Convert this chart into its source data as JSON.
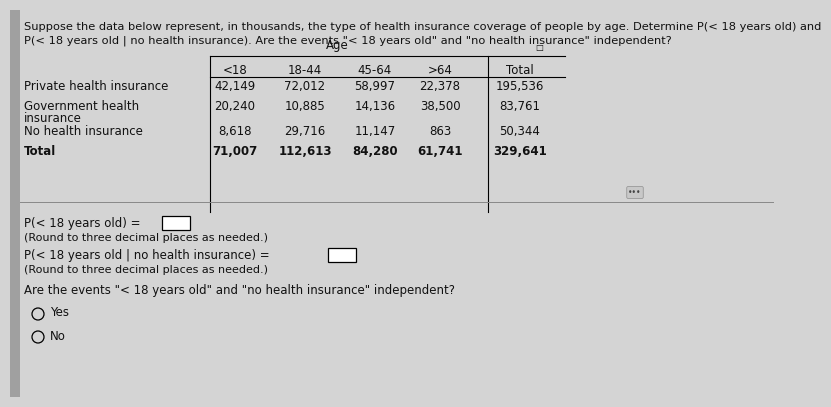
{
  "title_line1": "Suppose the data below represent, in thousands, the type of health insurance coverage of people by age. Determine P(< 18 years old) and",
  "title_line2": "P(< 18 years old | no health insurance). Are the events \"< 18 years old\" and \"no health insurance\" independent?",
  "age_header": "Age",
  "col_headers": [
    "<18",
    "18-44",
    "45-64",
    ">64",
    "Total"
  ],
  "row_labels_line1": [
    "Private health insurance",
    "Government health",
    "No health insurance",
    "Total"
  ],
  "row_labels_line2": [
    "",
    "insurance",
    "",
    ""
  ],
  "table_data": [
    [
      "42,149",
      "72,012",
      "58,997",
      "22,378",
      "195,536"
    ],
    [
      "20,240",
      "10,885",
      "14,136",
      "38,500",
      "83,761"
    ],
    [
      "8,618",
      "29,716",
      "11,147",
      "863",
      "50,344"
    ],
    [
      "71,007",
      "112,613",
      "84,280",
      "61,741",
      "329,641"
    ]
  ],
  "p1_label": "P(< 18 years old) =",
  "p1_note": "(Round to three decimal places as needed.)",
  "p2_label": "P(< 18 years old | no health insurance) =",
  "p2_note": "(Round to three decimal places as needed.)",
  "independent_question": "Are the events \"< 18 years old\" and \"no health insurance\" independent?",
  "option_yes": "Yes",
  "option_no": "No",
  "bg_color": "#d4d4d4",
  "text_color": "#111111",
  "font_size_title": 8.2,
  "font_size_table": 8.5,
  "font_size_body": 8.5,
  "left_bar_color": "#a0a0a0"
}
